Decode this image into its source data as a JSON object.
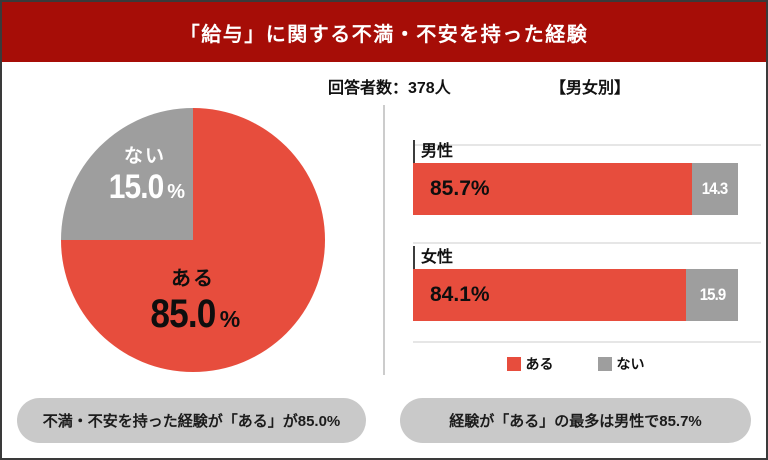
{
  "header": {
    "title": "「給与」に関する不満・不安を持った経験"
  },
  "meta": {
    "respondents": "回答者数：378人",
    "group_label": "【男女別】"
  },
  "colors": {
    "header_bg": "#a60d07",
    "yes": "#e74d3d",
    "no": "#9e9e9e",
    "pill_bg": "#c9c9c9",
    "divider": "#cccccc",
    "frame_border": "#3a3a3a"
  },
  "pie_display": {
    "no_label": "ない",
    "no_value": "15.0",
    "yes_label": "ある",
    "yes_value": "85.0",
    "percent": "%"
  },
  "bars_display": {
    "male": {
      "label": "男性",
      "yes": "85.7%",
      "no": "14.3"
    },
    "female": {
      "label": "女性",
      "yes": "84.1%",
      "no": "15.9"
    }
  },
  "legend": {
    "yes": "ある",
    "no": "ない"
  },
  "footers": {
    "left": "不満・不安を持った経験が「ある」が85.0%",
    "right": "経験が「ある」の最多は男性で85.7%"
  },
  "chart_data": [
    {
      "type": "pie",
      "title": "「給与」に関する不満・不安を持った経験",
      "note": "回答者数：378人",
      "labels": [
        "ある",
        "ない"
      ],
      "values": [
        85.0,
        15.0
      ],
      "unit": "%",
      "colors": [
        "#e74d3d",
        "#9e9e9e"
      ],
      "legend_position": "none"
    },
    {
      "type": "bar",
      "title": "【男女別】",
      "orientation": "horizontal",
      "stacked": true,
      "categories": [
        "男性",
        "女性"
      ],
      "series": [
        {
          "name": "ある",
          "values": [
            85.7,
            84.1
          ],
          "color": "#e74d3d"
        },
        {
          "name": "ない",
          "values": [
            14.3,
            15.9
          ],
          "color": "#9e9e9e"
        }
      ],
      "unit": "%",
      "xlim": [
        0,
        100
      ],
      "grid": false,
      "legend_position": "bottom"
    }
  ]
}
